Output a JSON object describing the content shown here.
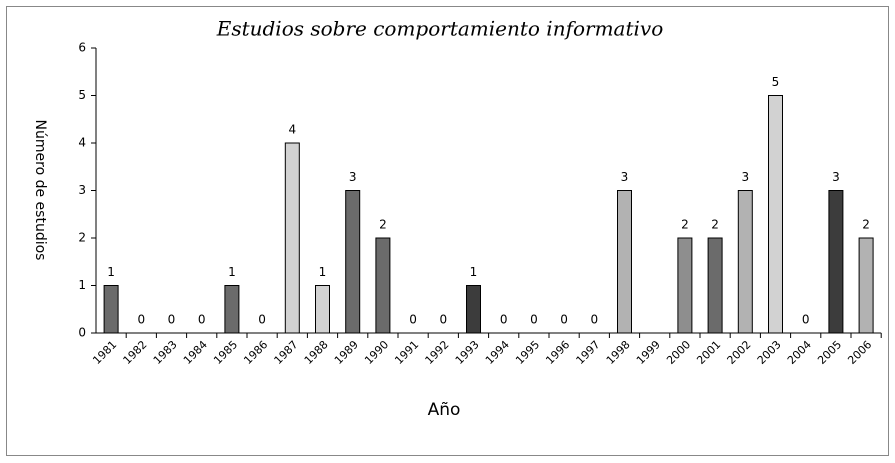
{
  "chart_data": {
    "type": "bar",
    "title": "Estudios sobre comportamiento informativo",
    "x_label": "Año",
    "y_label": "Número de estudios",
    "categories": [
      "1981",
      "1982",
      "1983",
      "1984",
      "1985",
      "1986",
      "1987",
      "1988",
      "1989",
      "1990",
      "1991",
      "1992",
      "1993",
      "1994",
      "1995",
      "1996",
      "1997",
      "1998",
      "1999",
      "2000",
      "2001",
      "2002",
      "2003",
      "2004",
      "2005",
      "2006"
    ],
    "values": [
      1,
      0,
      0,
      0,
      1,
      0,
      4,
      1,
      3,
      2,
      0,
      0,
      1,
      0,
      0,
      0,
      0,
      3,
      null,
      2,
      2,
      3,
      5,
      0,
      3,
      2
    ],
    "colors": [
      "#6b6b6b",
      "#6b6b6b",
      "#6b6b6b",
      "#6b6b6b",
      "#6b6b6b",
      "#6b6b6b",
      "#d2d2d2",
      "#d2d2d2",
      "#6b6b6b",
      "#6b6b6b",
      "#6b6b6b",
      "#6b6b6b",
      "#3c3c3c",
      "#6b6b6b",
      "#6b6b6b",
      "#6b6b6b",
      "#6b6b6b",
      "#b2b2b2",
      null,
      "#8e8e8e",
      "#6b6b6b",
      "#b2b2b2",
      "#d2d2d2",
      "#6b6b6b",
      "#3c3c3c",
      "#b2b2b2"
    ],
    "ylim": [
      0,
      6
    ],
    "yticks": [
      0,
      1,
      2,
      3,
      4,
      5,
      6
    ],
    "grid": false
  }
}
